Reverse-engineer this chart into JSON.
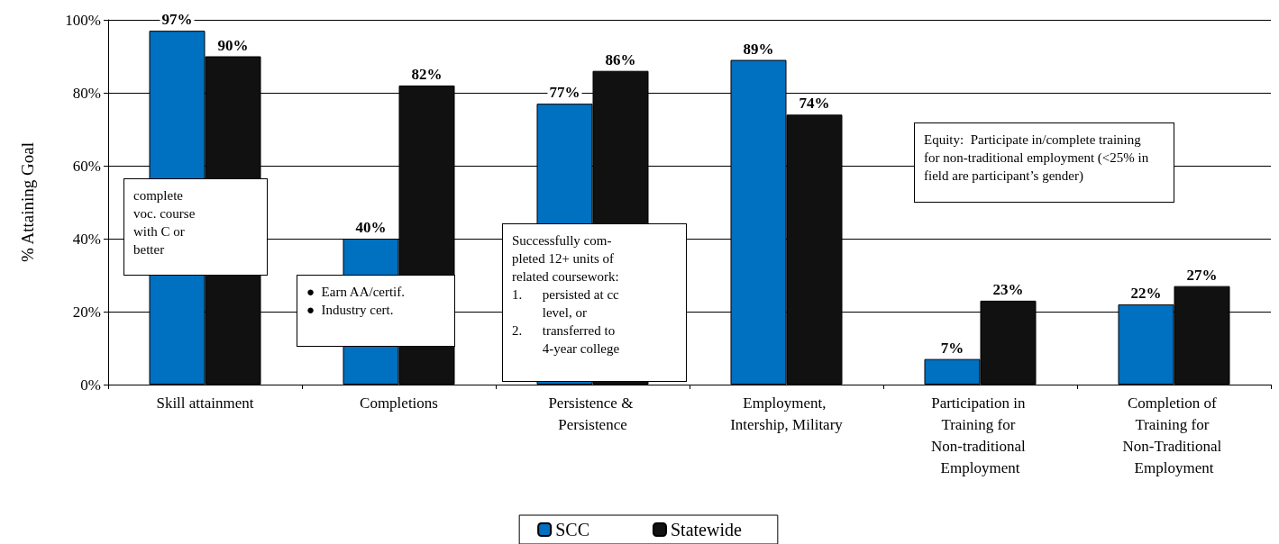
{
  "chart_data": {
    "type": "bar",
    "ylabel": "% Attaining Goal",
    "categories": [
      "Skill attainment",
      "Completions",
      "Persistence & Persistence",
      "Employment, Intership, Military",
      "Participation in Training for Non-traditional Employment",
      "Completion of Training for Non-Traditional Employment"
    ],
    "series": [
      {
        "name": "SCC",
        "color": "#0070c0",
        "values": [
          97,
          40,
          77,
          89,
          7,
          22
        ],
        "value_labels": [
          "97%",
          "40%",
          "77%",
          "89%",
          "7%",
          "22%"
        ]
      },
      {
        "name": "Statewide",
        "color": "#111111",
        "values": [
          90,
          82,
          86,
          74,
          23,
          27
        ],
        "value_labels": [
          "90%",
          "82%",
          "86%",
          "74%",
          "23%",
          "27%"
        ]
      }
    ],
    "ylim": [
      0,
      100
    ],
    "yticks": [
      {
        "value": 0,
        "label": "0%"
      },
      {
        "value": 20,
        "label": "20%"
      },
      {
        "value": 40,
        "label": "40%"
      },
      {
        "value": 60,
        "label": "60%"
      },
      {
        "value": 80,
        "label": "80%"
      },
      {
        "value": 100,
        "label": "100%"
      }
    ],
    "grid": "y",
    "legend": "bottom",
    "annotations": [
      "complete\nvoc. course\nwith C or\nbetter",
      "●  Earn AA/certif.\n●  Industry cert.",
      "Successfully com-\npleted 12+ units of\nrelated coursework:\n1.      persisted at cc\n         level, or\n2.      transferred to\n         4-year college",
      "Equity:  Participate in/complete training\nfor non-traditional employment (<25% in\nfield are participant’s gender)"
    ]
  }
}
